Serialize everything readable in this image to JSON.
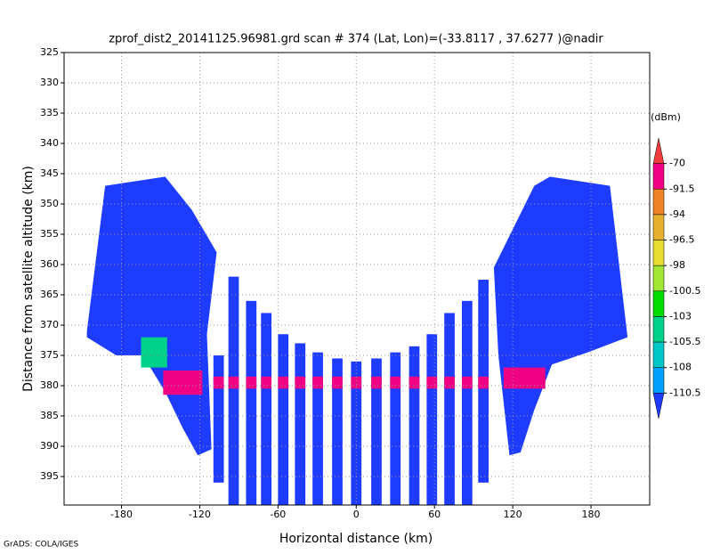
{
  "chart_data": {
    "type": "field",
    "title": "zprof_dist2_20141125.96981.grd  scan # 374  (Lat, Lon)=(-33.8117 , 37.6277 )@nadir",
    "x_label": "Horizontal distance (km)",
    "y_label": "Distance from satellite altitude (km)",
    "footer": "GrADS: COLA/IGES",
    "xlim": [
      -224,
      225
    ],
    "xticks": [
      -180,
      -120,
      -60,
      0,
      60,
      120,
      180
    ],
    "ylim": [
      325,
      399.7
    ],
    "yticks": [
      325,
      330,
      335,
      340,
      345,
      350,
      355,
      360,
      365,
      370,
      375,
      380,
      385,
      390,
      395
    ],
    "y_reversed": true,
    "grid": true,
    "colorbar": {
      "unit": "(dBm)",
      "levels": [
        -70,
        -91.5,
        -94,
        -96.5,
        -98,
        -100.5,
        -103,
        -105.5,
        -108,
        -110.5
      ],
      "colors": [
        "#f03c3c",
        "#f00082",
        "#f08228",
        "#e6af2d",
        "#e6dc32",
        "#a0e632",
        "#00dc00",
        "#00d28c",
        "#00c8c8",
        "#00a0ff",
        "#1e3cff"
      ]
    },
    "regions": [
      {
        "dbm": -115,
        "x": [
          -206.5,
          -192.5,
          -146.5,
          -126,
          -107,
          -114.5,
          -111,
          -121.5,
          -133,
          -146.5,
          -163.5,
          -184,
          -206.5
        ],
        "y": [
          371,
          347,
          345.5,
          351,
          358,
          371.5,
          390.5,
          391.5,
          387,
          381,
          375,
          375,
          372
        ]
      },
      {
        "dbm": -115,
        "x": [
          105.5,
          136.5,
          148.5,
          194.5,
          208,
          177.5,
          150,
          136.5,
          126,
          117.5,
          109
        ],
        "y": [
          360.5,
          347,
          345.5,
          347,
          372,
          374.5,
          376.5,
          384,
          391,
          391.5,
          375
        ]
      }
    ],
    "beams": {
      "dbm": -115,
      "x": [
        -105.5,
        -94,
        -80.5,
        -69,
        -56,
        -43,
        -29.5,
        -14.5,
        0,
        15.5,
        30,
        44.5,
        58,
        71.5,
        85,
        97.5
      ],
      "top": [
        375,
        362,
        366,
        368,
        371.5,
        373,
        374.5,
        375.5,
        376,
        375.5,
        374.5,
        373.5,
        371.5,
        368,
        366,
        362.5
      ],
      "bottom": [
        396,
        399.7,
        399.7,
        399.7,
        399.7,
        399.7,
        399.7,
        399.7,
        399.7,
        399.7,
        399.7,
        399.7,
        399.7,
        399.7,
        399.7,
        396
      ]
    },
    "patches": [
      {
        "dbm": -104,
        "x": [
          -165,
          -145
        ],
        "y": [
          372,
          377
        ]
      },
      {
        "dbm": -80,
        "x": [
          -148,
          -118
        ],
        "y": [
          377.5,
          381.5
        ]
      },
      {
        "dbm": -80,
        "x": [
          113,
          145
        ],
        "y": [
          377,
          380.5
        ]
      },
      {
        "dbm": -80,
        "x": [
          -110,
          110
        ],
        "y": [
          378.5,
          380.5
        ]
      }
    ]
  }
}
